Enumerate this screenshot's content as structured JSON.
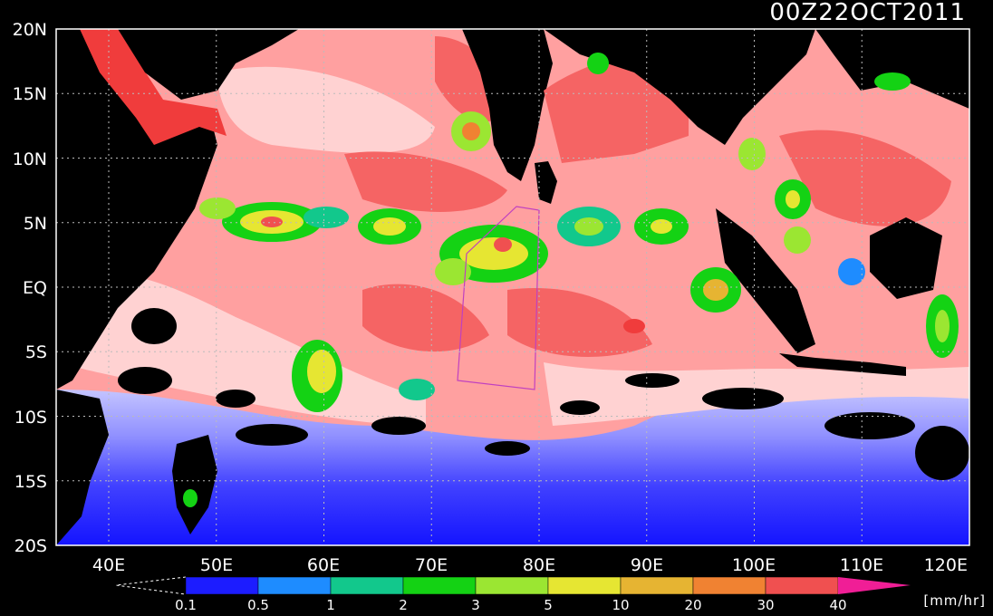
{
  "title": "00Z22OCT2011",
  "lat_labels": [
    "20N",
    "15N",
    "10N",
    "5N",
    "EQ",
    "5S",
    "10S",
    "15S",
    "20S"
  ],
  "lon_labels": [
    "40E",
    "50E",
    "60E",
    "70E",
    "80E",
    "90E",
    "100E",
    "110E",
    "120E"
  ],
  "colorbar": {
    "ticks": [
      "0.1",
      "0.5",
      "1",
      "2",
      "3",
      "5",
      "10",
      "20",
      "30",
      "40"
    ],
    "unit": "[mm/hr]",
    "colors": [
      "#1c1cff",
      "#1e8cff",
      "#12c88c",
      "#14d214",
      "#9be632",
      "#e6e632",
      "#e6b432",
      "#f08232",
      "#f05050",
      "#f01e96"
    ]
  },
  "map_colors": {
    "land": "#000000",
    "very_light_rain": "#ffd2d2",
    "light_rain": "#ffa0a0",
    "moderate_rain": "#f56464",
    "cool_low": "#d2d2ff",
    "cool_mid": "#7878ff",
    "cool_deep": "#1414ff"
  }
}
